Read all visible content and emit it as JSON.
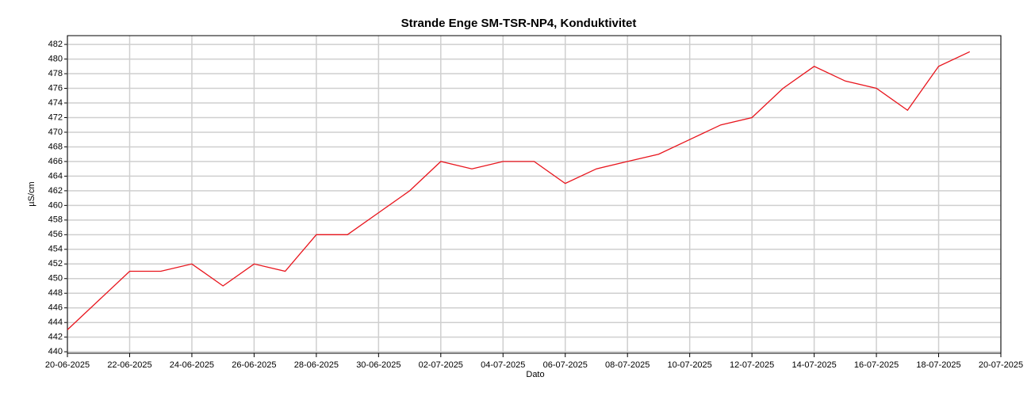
{
  "chart_data": {
    "type": "line",
    "title": "Strande Enge SM-TSR-NP4, Konduktivitet",
    "x_label": "Dato",
    "y_label": "µS/cm",
    "x": [
      "2025-06-20",
      "2025-06-21",
      "2025-06-22",
      "2025-06-23",
      "2025-06-24",
      "2025-06-25",
      "2025-06-26",
      "2025-06-27",
      "2025-06-28",
      "2025-06-29",
      "2025-06-30",
      "2025-07-01",
      "2025-07-02",
      "2025-07-03",
      "2025-07-04",
      "2025-07-05",
      "2025-07-06",
      "2025-07-07",
      "2025-07-08",
      "2025-07-09",
      "2025-07-10",
      "2025-07-11",
      "2025-07-12",
      "2025-07-13",
      "2025-07-14",
      "2025-07-15",
      "2025-07-16",
      "2025-07-17",
      "2025-07-18",
      "2025-07-19"
    ],
    "series": [
      {
        "name": "Konduktivitet",
        "color": "#e8141c",
        "values": [
          443,
          447,
          451,
          451,
          452,
          449,
          452,
          451,
          456,
          456,
          459,
          462,
          466,
          465,
          466,
          466,
          463,
          465,
          466,
          467,
          469,
          471,
          472,
          476,
          479,
          477,
          476,
          473,
          479,
          481
        ]
      }
    ],
    "xlim": [
      "2025-06-20",
      "2025-07-20"
    ],
    "xticks": [
      {
        "value": "2025-06-20",
        "label": "20-06-2025"
      },
      {
        "value": "2025-06-22",
        "label": "22-06-2025"
      },
      {
        "value": "2025-06-24",
        "label": "24-06-2025"
      },
      {
        "value": "2025-06-26",
        "label": "26-06-2025"
      },
      {
        "value": "2025-06-28",
        "label": "28-06-2025"
      },
      {
        "value": "2025-06-30",
        "label": "30-06-2025"
      },
      {
        "value": "2025-07-02",
        "label": "02-07-2025"
      },
      {
        "value": "2025-07-04",
        "label": "04-07-2025"
      },
      {
        "value": "2025-07-06",
        "label": "06-07-2025"
      },
      {
        "value": "2025-07-08",
        "label": "08-07-2025"
      },
      {
        "value": "2025-07-10",
        "label": "10-07-2025"
      },
      {
        "value": "2025-07-12",
        "label": "12-07-2025"
      },
      {
        "value": "2025-07-14",
        "label": "14-07-2025"
      },
      {
        "value": "2025-07-16",
        "label": "16-07-2025"
      },
      {
        "value": "2025-07-18",
        "label": "18-07-2025"
      },
      {
        "value": "2025-07-20",
        "label": "20-07-2025"
      }
    ],
    "ylim": [
      439.8,
      483.2
    ],
    "yticks": [
      440,
      442,
      444,
      446,
      448,
      450,
      452,
      454,
      456,
      458,
      460,
      462,
      464,
      466,
      468,
      470,
      472,
      474,
      476,
      478,
      480,
      482
    ],
    "grid": true
  }
}
